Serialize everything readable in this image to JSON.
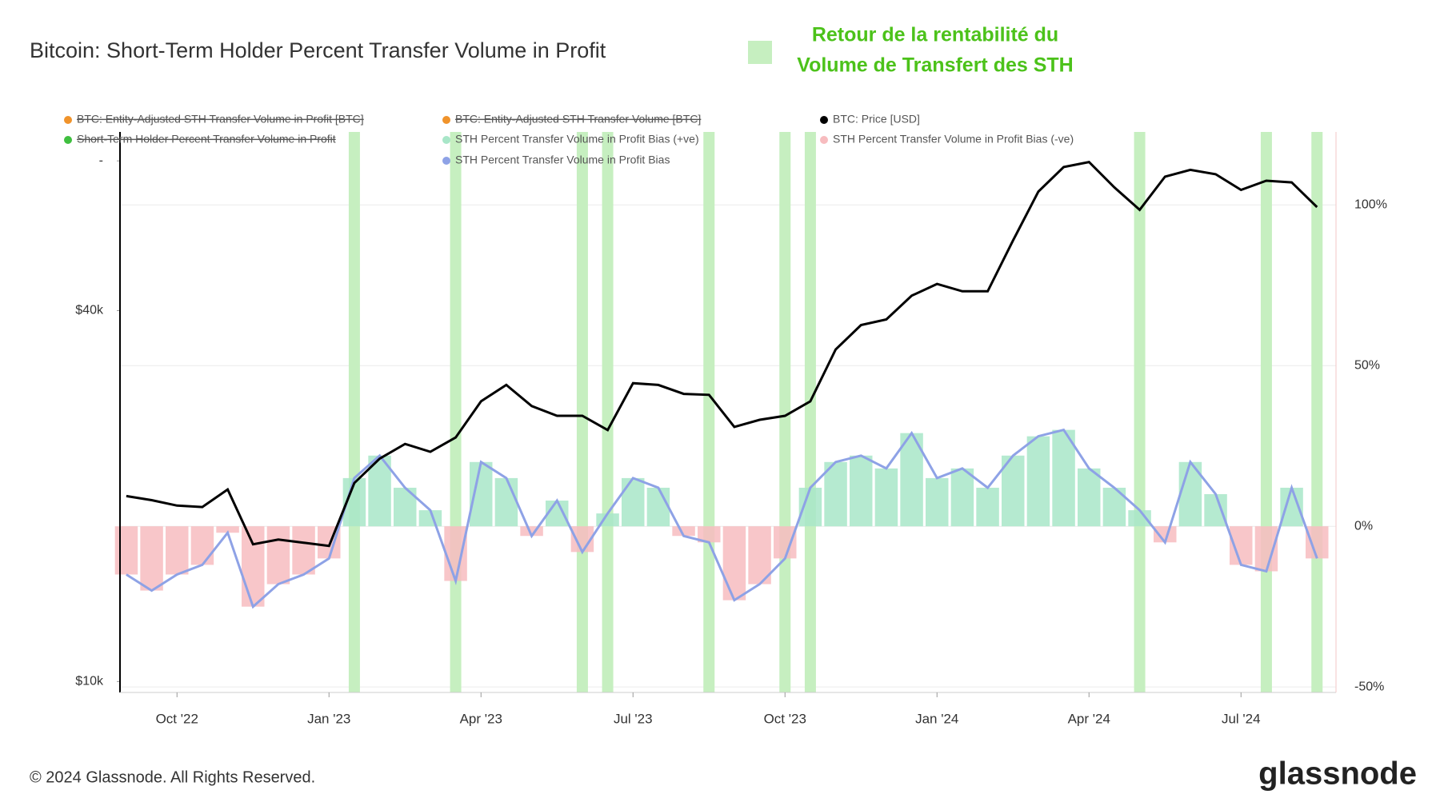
{
  "chart_data": {
    "type": "line",
    "title": "Bitcoin: Short-Term Holder Percent Transfer Volume in Profit",
    "annotation": [
      "Retour de la rentabilité du",
      "Volume de Transfert des STH"
    ],
    "highlight": {
      "color": "#c6efc0",
      "flags": [
        false,
        false,
        false,
        false,
        false,
        false,
        false,
        false,
        false,
        true,
        false,
        false,
        false,
        true,
        false,
        false,
        false,
        false,
        true,
        true,
        false,
        false,
        false,
        true,
        false,
        false,
        true,
        true,
        false,
        false,
        false,
        false,
        false,
        false,
        false,
        false,
        false,
        false,
        false,
        false,
        true,
        false,
        false,
        false,
        false,
        true,
        false,
        true
      ]
    },
    "categories": [
      null,
      null,
      "Oct '22",
      null,
      null,
      null,
      null,
      null,
      "Jan '23",
      null,
      null,
      null,
      null,
      null,
      "Apr '23",
      null,
      null,
      null,
      null,
      null,
      "Jul '23",
      null,
      null,
      null,
      null,
      null,
      "Oct '23",
      null,
      null,
      null,
      null,
      null,
      "Jan '24",
      null,
      null,
      null,
      null,
      null,
      "Apr '24",
      null,
      null,
      null,
      null,
      null,
      "Jul '24",
      null,
      null,
      null
    ],
    "series": [
      {
        "name": "BTC: Price [USD]",
        "color": "#000000",
        "values": [
          20000,
          19700,
          19300,
          19200,
          20500,
          16700,
          17000,
          16800,
          16600,
          21000,
          23000,
          24300,
          23600,
          24900,
          28500,
          30300,
          28000,
          27000,
          27000,
          25600,
          30500,
          30300,
          29300,
          29200,
          25900,
          26600,
          27000,
          28500,
          34600,
          37900,
          38700,
          42300,
          44200,
          43000,
          43000,
          52000,
          62400,
          68400,
          69700,
          63400,
          58300,
          66000,
          67700,
          66600,
          62800,
          65000,
          64600,
          58900
        ]
      },
      {
        "name": "STH Percent Transfer Volume in Profit Bias",
        "color": "#8ea2e6",
        "axis": "y2",
        "values": [
          -15,
          -20,
          -15,
          -12,
          -2,
          -25,
          -18,
          -15,
          -10,
          15,
          22,
          12,
          5,
          -17,
          20,
          15,
          -3,
          8,
          -8,
          4,
          15,
          12,
          -3,
          -5,
          -23,
          -18,
          -10,
          12,
          20,
          22,
          18,
          29,
          15,
          18,
          12,
          22,
          28,
          30,
          18,
          12,
          5,
          -5,
          20,
          10,
          -12,
          -14,
          12,
          -10
        ]
      }
    ],
    "bias_bars": {
      "positive": {
        "name": "STH Percent Transfer Volume in Profit Bias (+ve)",
        "color": "#a8e6c8"
      },
      "negative": {
        "name": "STH Percent Transfer Volume in Profit Bias (-ve)",
        "color": "#f7bcbf"
      }
    },
    "hidden_series": [
      {
        "name": "BTC: Entity-Adjusted STH Transfer Volume in Profit [BTC]",
        "color": "#f0932b"
      },
      {
        "name": "BTC: Entity-Adjusted STH Transfer Volume [BTC]",
        "color": "#f0932b"
      },
      {
        "name": "Short-Term Holder Percent Transfer Volume in Profit",
        "color": "#3fbf3f"
      }
    ],
    "ylim": [
      9600,
      78000
    ],
    "log_scale": true,
    "yticks": [
      {
        "value": 10000,
        "label": "$10k"
      },
      {
        "value": 40000,
        "label": "$40k"
      },
      {
        "value": 70000,
        "label": "-"
      }
    ],
    "y2lim": [
      -51.7,
      122.7
    ],
    "y2ticks": [
      {
        "value": -50,
        "label": "-50%"
      },
      {
        "value": 0,
        "label": "0%"
      },
      {
        "value": 50,
        "label": "50%"
      },
      {
        "value": 100,
        "label": "100%"
      }
    ],
    "grid": true,
    "footer": "© 2024 Glassnode. All Rights Reserved.",
    "logo": "glassnode"
  }
}
